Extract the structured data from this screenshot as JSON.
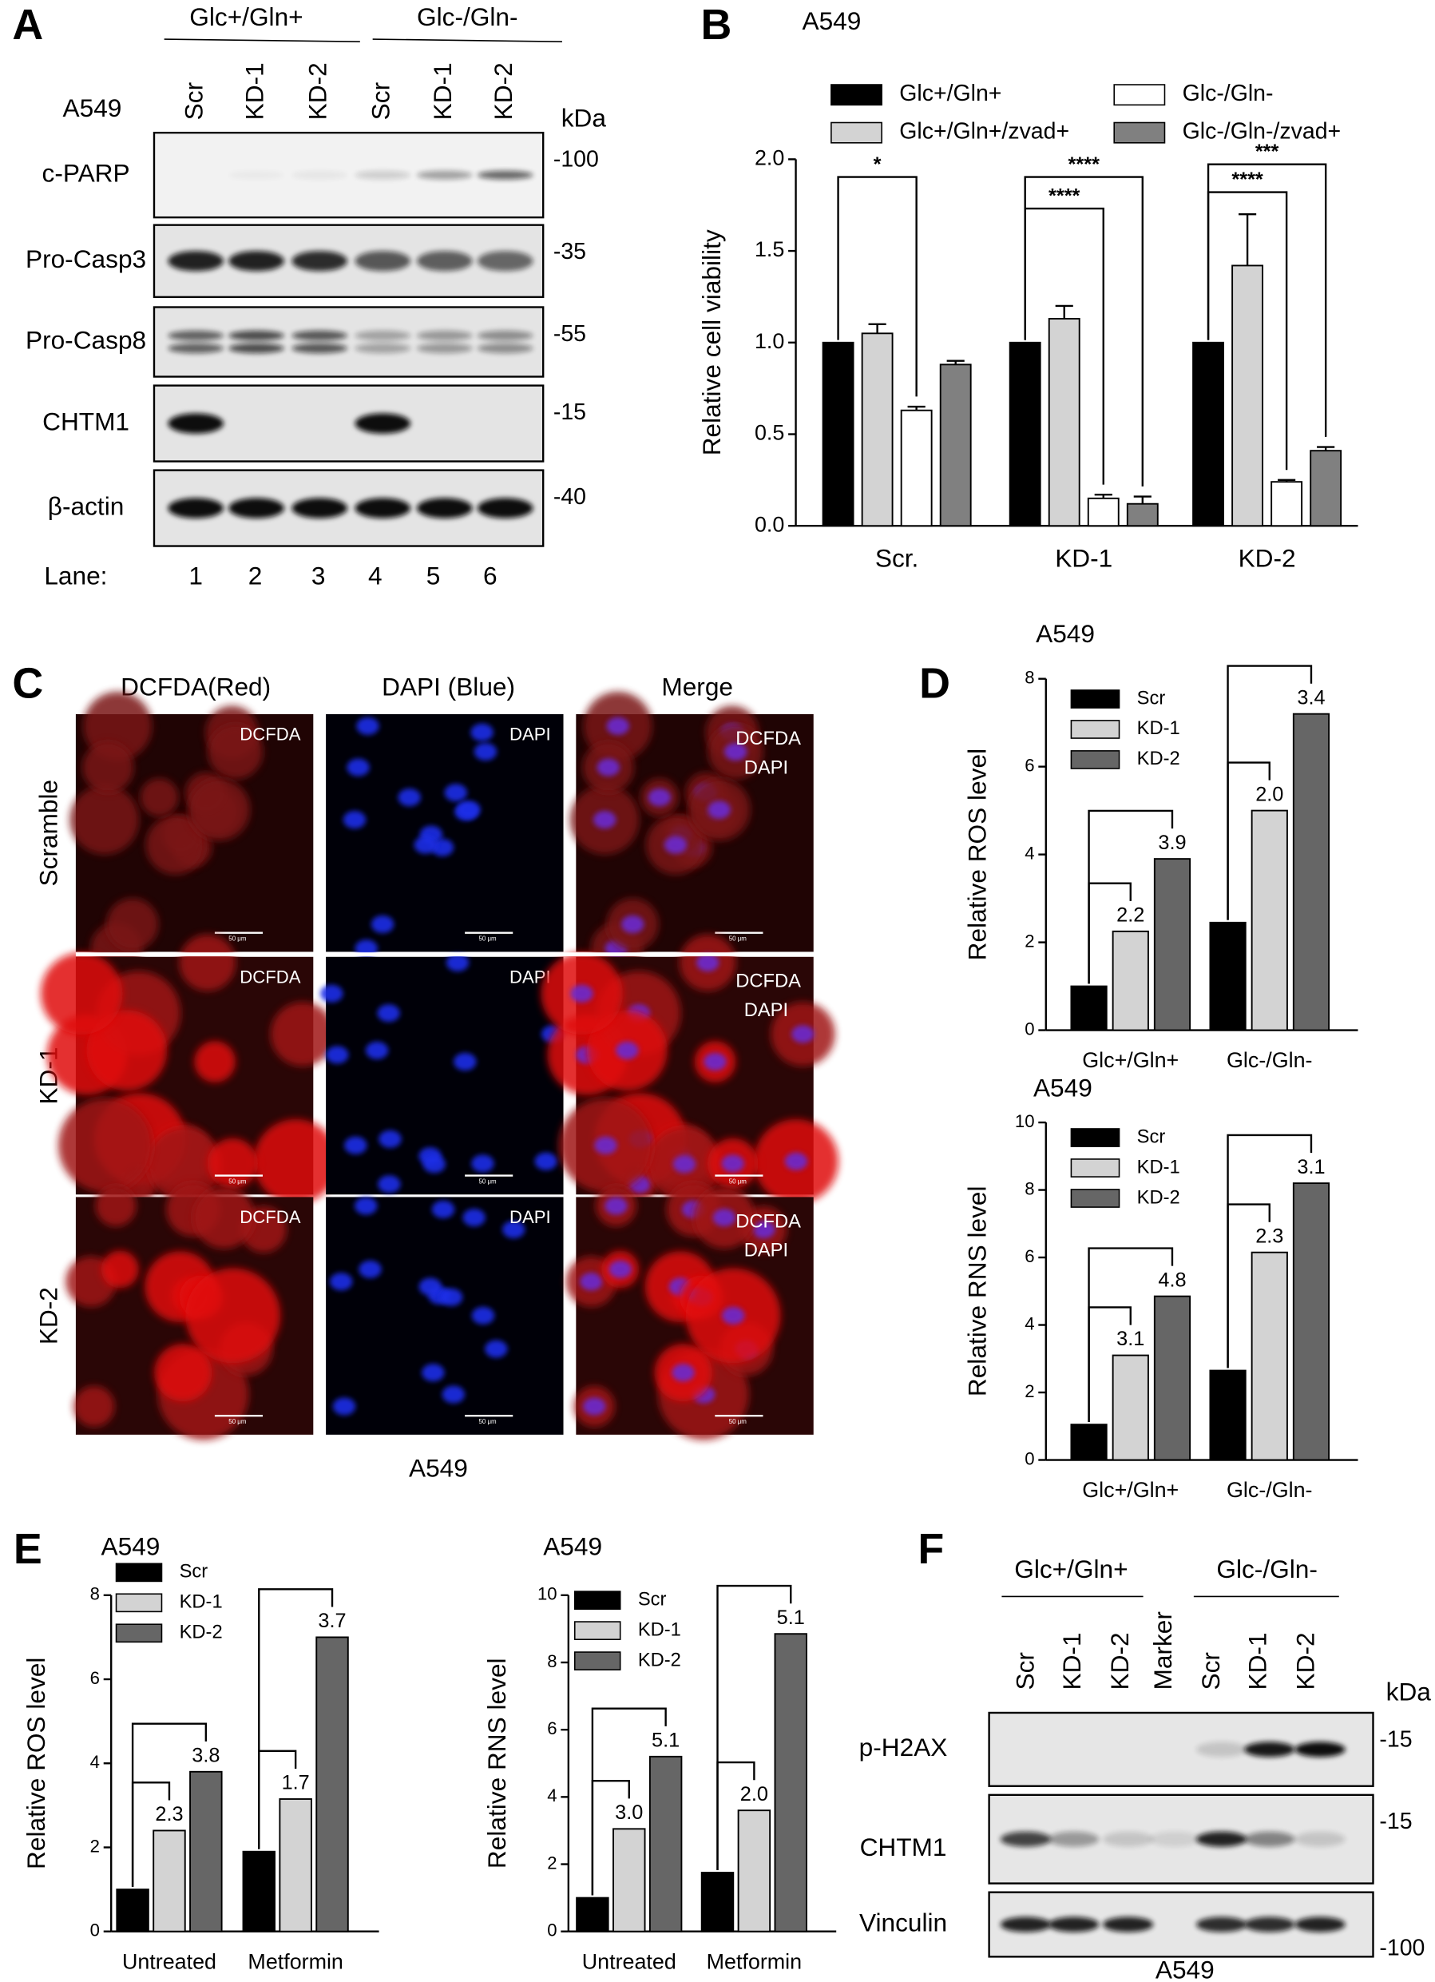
{
  "panel_labels": [
    "A",
    "B",
    "C",
    "D",
    "E",
    "F"
  ],
  "blot_a": {
    "cell_line": "A549",
    "conditions": [
      "Glc+/Gln+",
      "Glc-/Gln-"
    ],
    "lanes": [
      "Scr",
      "KD-1",
      "KD-2",
      "Scr",
      "KD-1",
      "KD-2"
    ],
    "kda_label": "kDa",
    "rows": [
      {
        "name": "c-PARP",
        "kda": "-100"
      },
      {
        "name": "Pro-Casp3",
        "kda": "-35"
      },
      {
        "name": "Pro-Casp8",
        "kda": "-55"
      },
      {
        "name": "CHTM1",
        "kda": "-15"
      },
      {
        "name": "β-actin",
        "kda": "-40"
      }
    ],
    "lane_label": "Lane:",
    "lane_numbers": [
      "1",
      "2",
      "3",
      "4",
      "5",
      "6"
    ]
  },
  "microscopy": {
    "columns": [
      "DCFDA(Red)",
      "DAPI (Blue)",
      "Merge"
    ],
    "rows": [
      "Scramble",
      "KD-1",
      "KD-2"
    ],
    "stain_labels": [
      "DCFDA",
      "DAPI"
    ],
    "scale_bar": "50 μm",
    "caption": "A549"
  },
  "blot_f": {
    "conditions": [
      "Glc+/Gln+",
      "Glc-/Gln-"
    ],
    "lanes": [
      "Scr",
      "KD-1",
      "KD-2",
      "Marker",
      "Scr",
      "KD-1",
      "KD-2"
    ],
    "kda_label": "kDa",
    "rows": [
      {
        "name": "p-H2AX",
        "kda": "-15"
      },
      {
        "name": "CHTM1",
        "kda": "-15"
      },
      {
        "name": "Vinculin",
        "kda": "-100"
      }
    ],
    "caption": "A549"
  },
  "chart_data": [
    {
      "type": "bar",
      "title": "A549",
      "y_label": "Relative cell viability",
      "categories": [
        "Scr.",
        "KD-1",
        "KD-2"
      ],
      "series": [
        {
          "name": "Glc+/Gln+",
          "color": "#000000",
          "values": [
            1,
            1,
            1
          ]
        },
        {
          "name": "Glc+/Gln+/zvad+",
          "color": "#d3d3d3",
          "values": [
            1.05,
            1.13,
            1.42
          ],
          "errors": [
            0.05,
            0.07,
            0.28
          ]
        },
        {
          "name": "Glc-/Gln-",
          "color": "#ffffff",
          "values": [
            0.63,
            0.15,
            0.24
          ],
          "errors": [
            0.02,
            0.02,
            0.01
          ]
        },
        {
          "name": "Glc-/Gln-/zvad+",
          "color": "#808080",
          "values": [
            0.88,
            0.12,
            0.41
          ],
          "errors": [
            0.02,
            0.04,
            0.02
          ]
        }
      ],
      "ylim": [
        0,
        2.0
      ],
      "yticks": [
        {
          "value": 0,
          "label": "0.0"
        },
        {
          "value": 0.5,
          "label": "0.5"
        },
        {
          "value": 1,
          "label": "1.0"
        },
        {
          "value": 1.5,
          "label": "1.5"
        },
        {
          "value": 2,
          "label": "2.0"
        }
      ],
      "annotations": [
        "*",
        "****",
        "****",
        "****",
        "***"
      ]
    },
    {
      "type": "bar",
      "title": "A549",
      "y_label": "Relative ROS level",
      "categories": [
        "Glc+/Gln+",
        "Glc-/Gln-"
      ],
      "series": [
        {
          "name": "Scr",
          "color": "#000000",
          "values": [
            1.0,
            2.45
          ]
        },
        {
          "name": "KD-1",
          "color": "#d3d3d3",
          "values": [
            2.25,
            5.0
          ]
        },
        {
          "name": "KD-2",
          "color": "#666666",
          "values": [
            3.9,
            7.2
          ]
        }
      ],
      "ylim": [
        0,
        8
      ],
      "yticks": [
        0,
        2,
        4,
        6,
        8
      ],
      "annotations": [
        "2.2",
        "3.9",
        "2.0",
        "3.4"
      ]
    },
    {
      "type": "bar",
      "title": "A549",
      "y_label": "Relative RNS level",
      "categories": [
        "Glc+/Gln+",
        "Glc-/Gln-"
      ],
      "series": [
        {
          "name": "Scr",
          "color": "#000000",
          "values": [
            1.05,
            2.65
          ]
        },
        {
          "name": "KD-1",
          "color": "#d3d3d3",
          "values": [
            3.1,
            6.15
          ]
        },
        {
          "name": "KD-2",
          "color": "#666666",
          "values": [
            4.85,
            8.2
          ]
        }
      ],
      "ylim": [
        0,
        10
      ],
      "yticks": [
        0,
        2,
        4,
        6,
        8,
        10
      ],
      "annotations": [
        "3.1",
        "4.8",
        "2.3",
        "3.1"
      ]
    },
    {
      "type": "bar",
      "title": "A549",
      "y_label": "Relative ROS level",
      "categories": [
        "Untreated",
        "Metformin"
      ],
      "series": [
        {
          "name": "Scr",
          "color": "#000000",
          "values": [
            1.0,
            1.9
          ]
        },
        {
          "name": "KD-1",
          "color": "#d3d3d3",
          "values": [
            2.4,
            3.15
          ]
        },
        {
          "name": "KD-2",
          "color": "#666666",
          "values": [
            3.8,
            7.0
          ]
        }
      ],
      "ylim": [
        0,
        8
      ],
      "yticks": [
        0,
        2,
        4,
        6,
        8
      ],
      "annotations": [
        "2.3",
        "3.8",
        "1.7",
        "3.7"
      ]
    },
    {
      "type": "bar",
      "title": "A549",
      "y_label": "Relative RNS level",
      "categories": [
        "Untreated",
        "Metformin"
      ],
      "series": [
        {
          "name": "Scr",
          "color": "#000000",
          "values": [
            1.0,
            1.75
          ]
        },
        {
          "name": "KD-1",
          "color": "#d3d3d3",
          "values": [
            3.05,
            3.6
          ]
        },
        {
          "name": "KD-2",
          "color": "#666666",
          "values": [
            5.2,
            8.85
          ]
        }
      ],
      "ylim": [
        0,
        10
      ],
      "yticks": [
        0,
        2,
        4,
        6,
        8,
        10
      ],
      "annotations": [
        "3.0",
        "5.1",
        "2.0",
        "5.1"
      ]
    }
  ]
}
